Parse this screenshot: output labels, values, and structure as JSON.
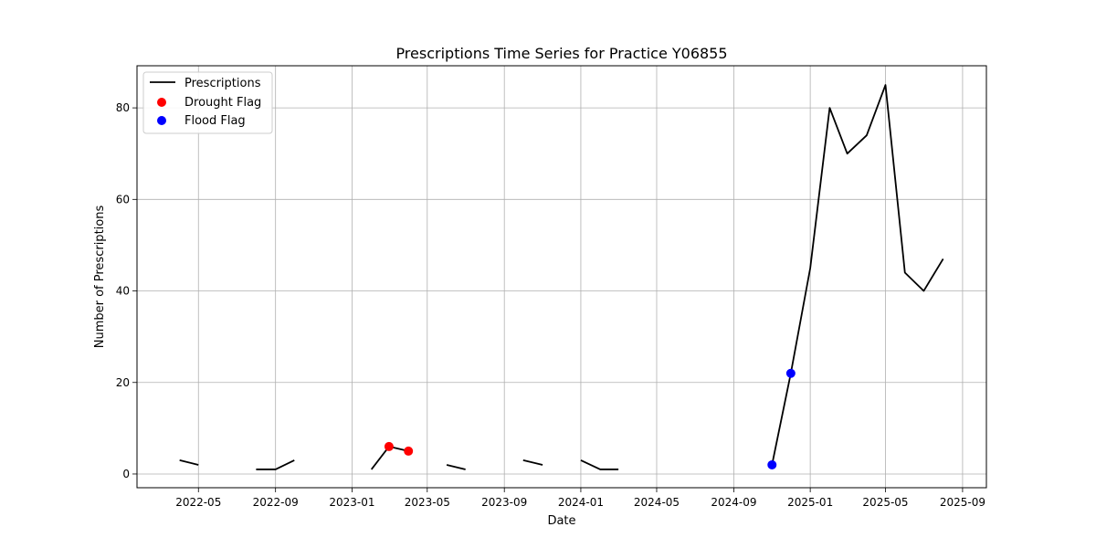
{
  "chart_data": {
    "type": "line",
    "title": "Prescriptions Time Series for Practice Y06855",
    "xlabel": "Date",
    "ylabel": "Number of Prescriptions",
    "grid": true,
    "legend_position": "top-left",
    "xlim": [
      "2022-01-23",
      "2025-10-09"
    ],
    "ylim": [
      -3,
      89.2
    ],
    "x_ticks": [
      "2022-05",
      "2022-09",
      "2023-01",
      "2023-05",
      "2023-09",
      "2024-01",
      "2024-05",
      "2024-09",
      "2025-01",
      "2025-05",
      "2025-09"
    ],
    "y_ticks": [
      0,
      20,
      40,
      60,
      80
    ],
    "series": [
      {
        "name": "Prescriptions",
        "kind": "line",
        "color": "#000000",
        "points": [
          [
            "2022-04-01",
            3
          ],
          [
            "2022-05-01",
            2
          ],
          [
            "2022-06-01",
            null
          ],
          [
            "2022-07-01",
            null
          ],
          [
            "2022-08-01",
            1
          ],
          [
            "2022-09-01",
            1
          ],
          [
            "2022-10-01",
            3
          ],
          [
            "2022-11-01",
            null
          ],
          [
            "2022-12-01",
            null
          ],
          [
            "2023-01-01",
            null
          ],
          [
            "2023-02-01",
            1
          ],
          [
            "2023-03-01",
            6
          ],
          [
            "2023-04-01",
            5
          ],
          [
            "2023-05-01",
            null
          ],
          [
            "2023-06-01",
            2
          ],
          [
            "2023-07-01",
            1
          ],
          [
            "2023-08-01",
            null
          ],
          [
            "2023-09-01",
            null
          ],
          [
            "2023-10-01",
            3
          ],
          [
            "2023-11-01",
            2
          ],
          [
            "2023-12-01",
            null
          ],
          [
            "2024-01-01",
            3
          ],
          [
            "2024-02-01",
            1
          ],
          [
            "2024-03-01",
            1
          ],
          [
            "2024-04-01",
            null
          ],
          [
            "2024-05-01",
            null
          ],
          [
            "2024-06-01",
            null
          ],
          [
            "2024-07-01",
            null
          ],
          [
            "2024-08-01",
            null
          ],
          [
            "2024-09-01",
            null
          ],
          [
            "2024-10-01",
            null
          ],
          [
            "2024-11-01",
            2
          ],
          [
            "2024-12-01",
            22
          ],
          [
            "2025-01-01",
            45
          ],
          [
            "2025-02-01",
            80
          ],
          [
            "2025-03-01",
            70
          ],
          [
            "2025-04-01",
            74
          ],
          [
            "2025-05-01",
            85
          ],
          [
            "2025-06-01",
            44
          ],
          [
            "2025-07-01",
            40
          ],
          [
            "2025-08-01",
            47
          ]
        ]
      },
      {
        "name": "Drought Flag",
        "kind": "scatter",
        "color": "#ff0000",
        "points": [
          [
            "2023-03-01",
            6
          ],
          [
            "2023-04-01",
            5
          ]
        ]
      },
      {
        "name": "Flood Flag",
        "kind": "scatter",
        "color": "#0000ff",
        "points": [
          [
            "2024-11-01",
            2
          ],
          [
            "2024-12-01",
            22
          ]
        ]
      }
    ]
  }
}
